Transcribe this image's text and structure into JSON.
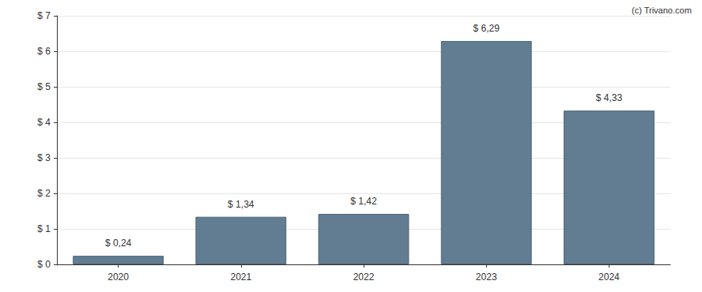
{
  "chart_data": {
    "type": "bar",
    "annotation": "(c) Trivano.com",
    "categories": [
      "2020",
      "2021",
      "2022",
      "2023",
      "2024"
    ],
    "values": [
      0.24,
      1.34,
      1.42,
      6.29,
      4.33
    ],
    "value_labels": [
      "$ 0,24",
      "$ 1,34",
      "$ 1,42",
      "$ 6,29",
      "$ 4,33"
    ],
    "data_labels": true,
    "color": "#627d91",
    "ylim": [
      0,
      7
    ],
    "yticks": [
      {
        "value": 0,
        "label": "$ 0"
      },
      {
        "value": 1,
        "label": "$ 1"
      },
      {
        "value": 2,
        "label": "$ 2"
      },
      {
        "value": 3,
        "label": "$ 3"
      },
      {
        "value": 4,
        "label": "$ 4"
      },
      {
        "value": 5,
        "label": "$ 5"
      },
      {
        "value": 6,
        "label": "$ 6"
      },
      {
        "value": 7,
        "label": "$ 7"
      }
    ],
    "grid": true
  }
}
